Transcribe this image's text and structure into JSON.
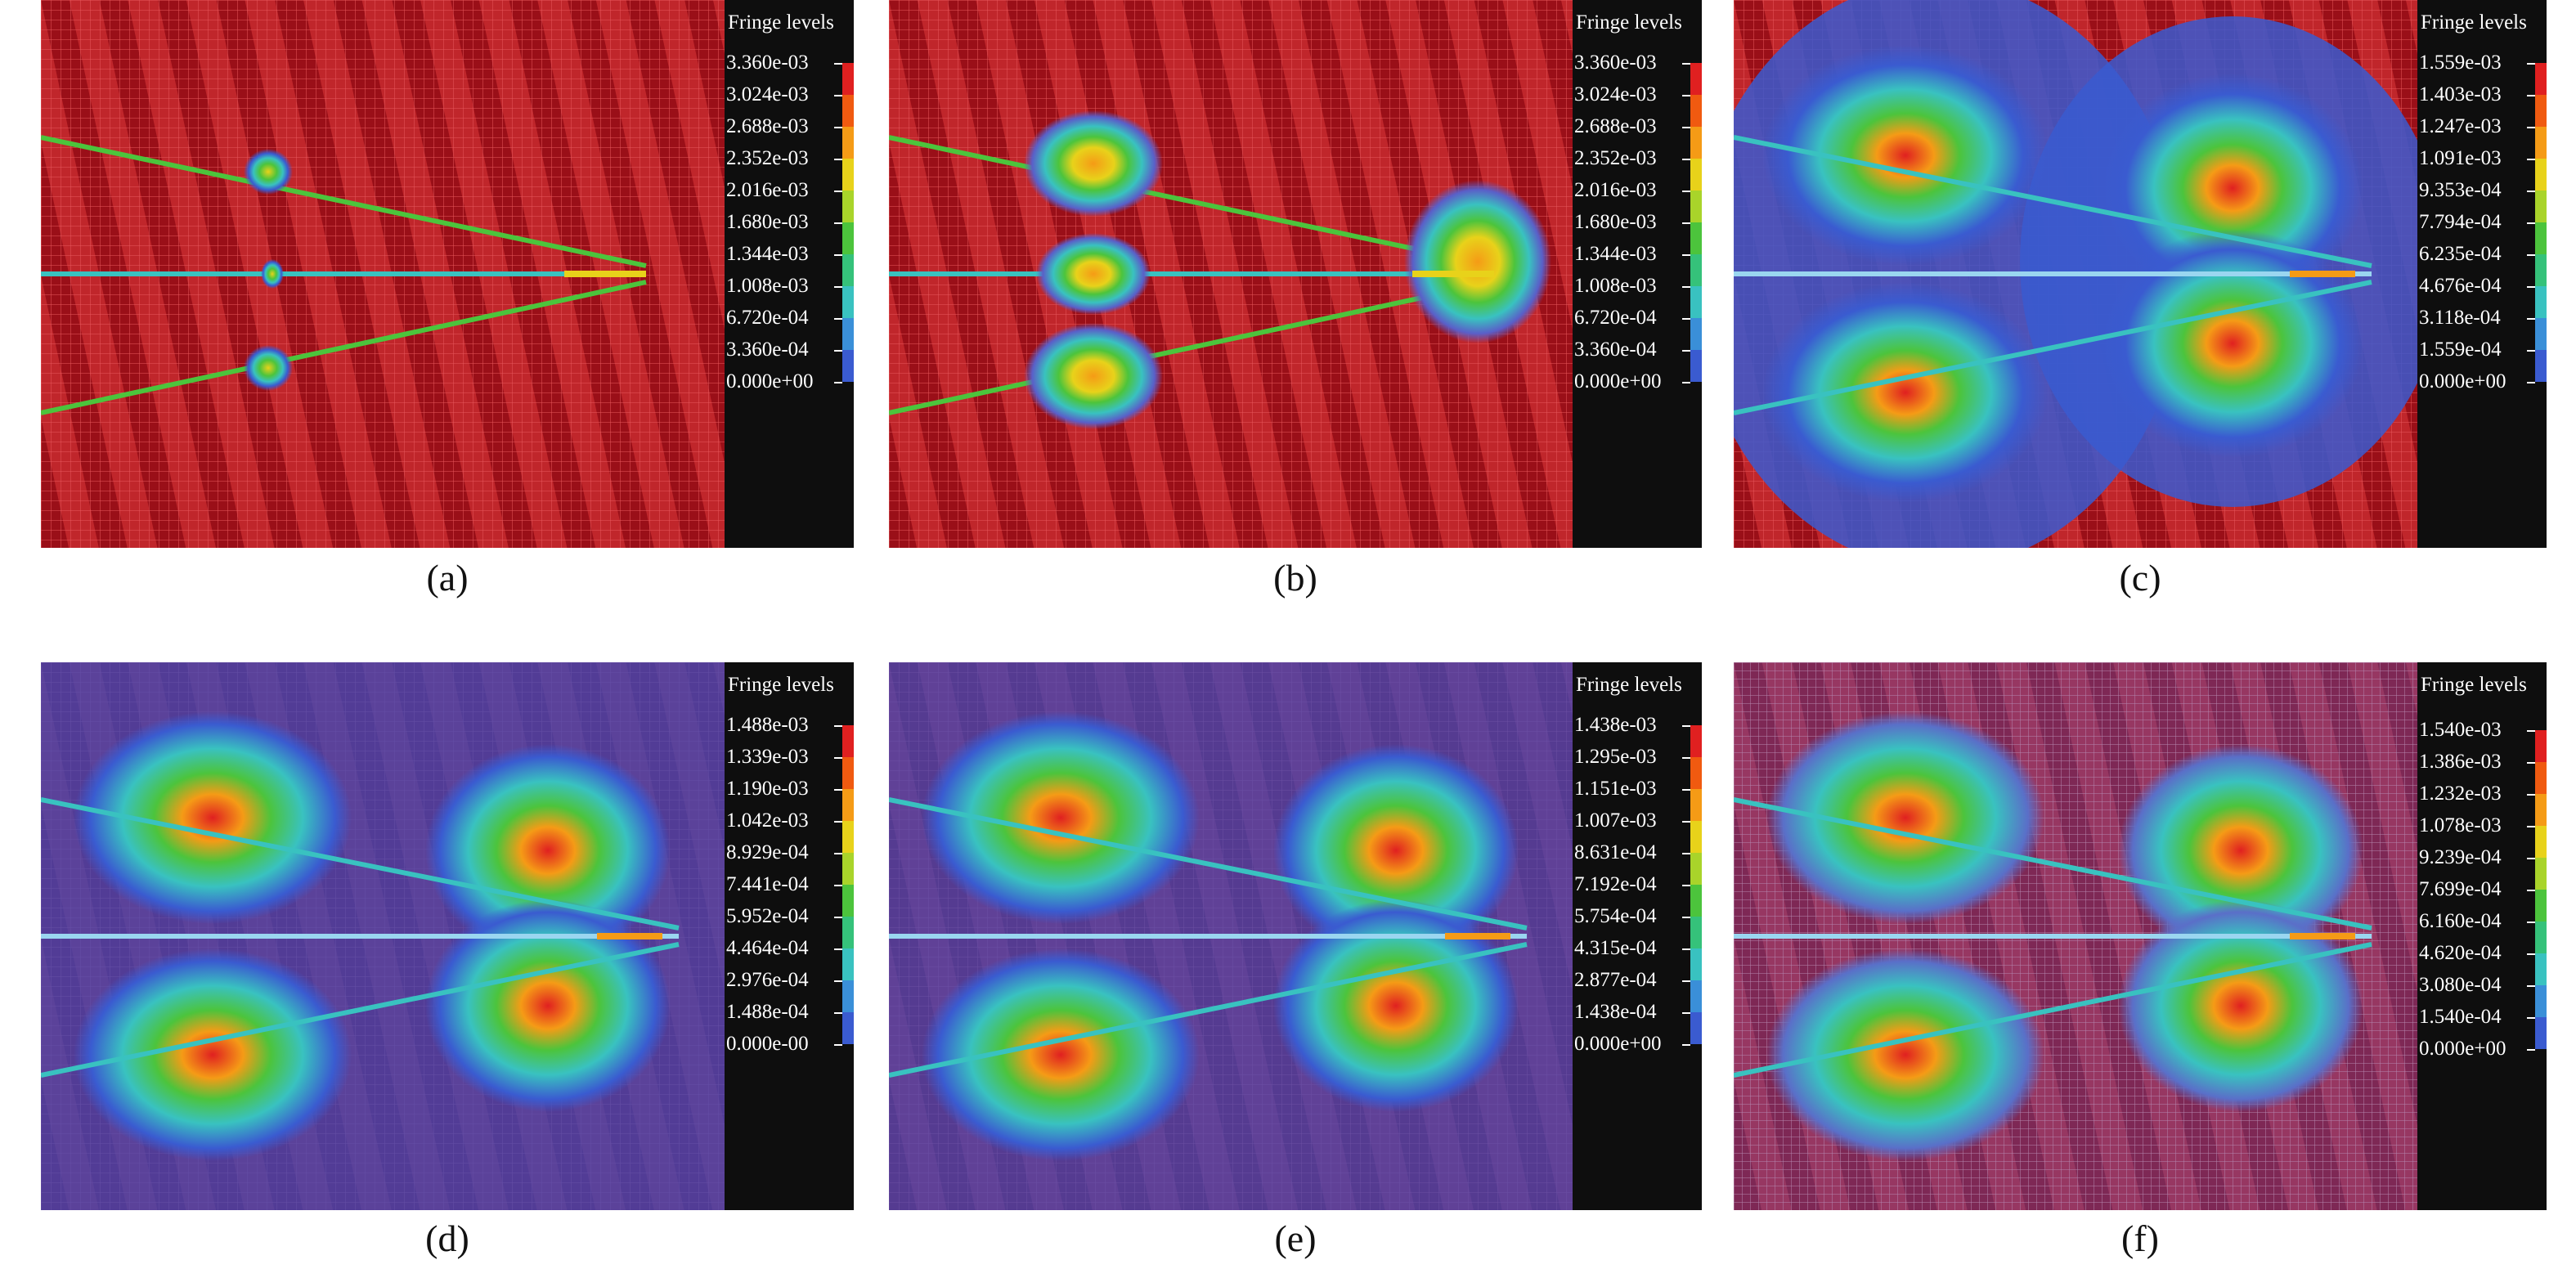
{
  "panels": [
    {
      "caption": "(a)",
      "legend_title": "Fringe levels",
      "levels": [
        "3.360e-03",
        "3.024e-03",
        "2.688e-03",
        "2.352e-03",
        "2.016e-03",
        "1.680e-03",
        "1.344e-03",
        "1.008e-03",
        "6.720e-04",
        "3.360e-04",
        "0.000e+00"
      ]
    },
    {
      "caption": "(b)",
      "legend_title": "Fringe levels",
      "levels": [
        "3.360e-03",
        "3.024e-03",
        "2.688e-03",
        "2.352e-03",
        "2.016e-03",
        "1.680e-03",
        "1.344e-03",
        "1.008e-03",
        "6.720e-04",
        "3.360e-04",
        "0.000e+00"
      ]
    },
    {
      "caption": "(c)",
      "legend_title": "Fringe levels",
      "levels": [
        "1.559e-03",
        "1.403e-03",
        "1.247e-03",
        "1.091e-03",
        "9.353e-04",
        "7.794e-04",
        "6.235e-04",
        "4.676e-04",
        "3.118e-04",
        "1.559e-04",
        "0.000e+00"
      ]
    },
    {
      "caption": "(d)",
      "legend_title": "Fringe levels",
      "levels": [
        "1.488e-03",
        "1.339e-03",
        "1.190e-03",
        "1.042e-03",
        "8.929e-04",
        "7.441e-04",
        "5.952e-04",
        "4.464e-04",
        "2.976e-04",
        "1.488e-04",
        "0.000e-00"
      ]
    },
    {
      "caption": "(e)",
      "legend_title": "Fringe levels",
      "levels": [
        "1.438e-03",
        "1.295e-03",
        "1.151e-03",
        "1.007e-03",
        "8.631e-04",
        "7.192e-04",
        "5.754e-04",
        "4.315e-04",
        "2.877e-04",
        "1.438e-04",
        "0.000e+00"
      ]
    },
    {
      "caption": "(f)",
      "legend_title": "Fringe levels",
      "levels": [
        "1.540e-03",
        "1.386e-03",
        "1.232e-03",
        "1.078e-03",
        "9.239e-04",
        "7.699e-04",
        "6.160e-04",
        "4.620e-04",
        "3.080e-04",
        "1.540e-04",
        "0.000e+00"
      ]
    }
  ],
  "colors": {
    "scale": [
      "#e02020",
      "#f05a10",
      "#f59b16",
      "#e8d21a",
      "#a9d42a",
      "#4cc43c",
      "#35c27a",
      "#39c2c0",
      "#3a8fd8",
      "#3a5bd0"
    ],
    "mesh": "#c0262b",
    "legend_bg": "#0e0e0e"
  }
}
